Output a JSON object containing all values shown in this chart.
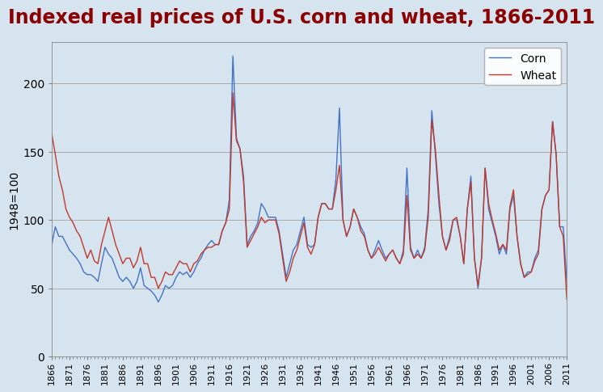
{
  "title": "Indexed real prices of U.S. corn and wheat, 1866-2011",
  "title_color": "#8B0000",
  "title_fontsize": 17,
  "ylabel": "1948=100",
  "ylabel_fontsize": 10,
  "background_color": "#d6e4f0",
  "plot_background": "#d6e4f0",
  "corn_color": "#4472c4",
  "wheat_color": "#c0392b",
  "ylim": [
    0,
    230
  ],
  "yticks": [
    0,
    50,
    100,
    150,
    200
  ],
  "years": [
    1866,
    1867,
    1868,
    1869,
    1870,
    1871,
    1872,
    1873,
    1874,
    1875,
    1876,
    1877,
    1878,
    1879,
    1880,
    1881,
    1882,
    1883,
    1884,
    1885,
    1886,
    1887,
    1888,
    1889,
    1890,
    1891,
    1892,
    1893,
    1894,
    1895,
    1896,
    1897,
    1898,
    1899,
    1900,
    1901,
    1902,
    1903,
    1904,
    1905,
    1906,
    1907,
    1908,
    1909,
    1910,
    1911,
    1912,
    1913,
    1914,
    1915,
    1916,
    1917,
    1918,
    1919,
    1920,
    1921,
    1922,
    1923,
    1924,
    1925,
    1926,
    1927,
    1928,
    1929,
    1930,
    1931,
    1932,
    1933,
    1934,
    1935,
    1936,
    1937,
    1938,
    1939,
    1940,
    1941,
    1942,
    1943,
    1944,
    1945,
    1946,
    1947,
    1948,
    1949,
    1950,
    1951,
    1952,
    1953,
    1954,
    1955,
    1956,
    1957,
    1958,
    1959,
    1960,
    1961,
    1962,
    1963,
    1964,
    1965,
    1966,
    1967,
    1968,
    1969,
    1970,
    1971,
    1972,
    1973,
    1974,
    1975,
    1976,
    1977,
    1978,
    1979,
    1980,
    1981,
    1982,
    1983,
    1984,
    1985,
    1986,
    1987,
    1988,
    1989,
    1990,
    1991,
    1992,
    1993,
    1994,
    1995,
    1996,
    1997,
    1998,
    1999,
    2000,
    2001,
    2002,
    2003,
    2004,
    2005,
    2006,
    2007,
    2008,
    2009,
    2010,
    2011
  ],
  "corn": [
    82,
    95,
    88,
    88,
    83,
    78,
    75,
    72,
    68,
    62,
    60,
    60,
    58,
    55,
    68,
    80,
    75,
    72,
    65,
    58,
    55,
    58,
    55,
    50,
    55,
    65,
    52,
    50,
    48,
    45,
    40,
    45,
    52,
    50,
    52,
    58,
    62,
    60,
    62,
    58,
    62,
    68,
    72,
    78,
    82,
    85,
    82,
    82,
    92,
    98,
    115,
    220,
    160,
    152,
    132,
    82,
    88,
    92,
    98,
    112,
    108,
    102,
    102,
    102,
    92,
    75,
    58,
    68,
    78,
    82,
    92,
    102,
    82,
    80,
    82,
    102,
    112,
    112,
    108,
    108,
    130,
    182,
    100,
    88,
    95,
    108,
    102,
    95,
    90,
    78,
    72,
    78,
    85,
    78,
    72,
    75,
    78,
    72,
    68,
    78,
    138,
    80,
    72,
    78,
    72,
    80,
    108,
    180,
    148,
    112,
    88,
    78,
    88,
    100,
    100,
    88,
    68,
    108,
    132,
    72,
    50,
    72,
    138,
    108,
    98,
    88,
    75,
    82,
    75,
    108,
    118,
    88,
    68,
    58,
    62,
    62,
    72,
    78,
    108,
    118,
    122,
    172,
    148,
    95,
    95,
    55
  ],
  "wheat": [
    163,
    148,
    132,
    122,
    108,
    102,
    98,
    92,
    88,
    80,
    72,
    78,
    70,
    68,
    82,
    92,
    102,
    92,
    82,
    75,
    68,
    72,
    72,
    65,
    70,
    80,
    68,
    68,
    58,
    58,
    50,
    55,
    62,
    60,
    60,
    65,
    70,
    68,
    68,
    62,
    68,
    70,
    75,
    78,
    80,
    80,
    82,
    82,
    92,
    98,
    108,
    193,
    158,
    152,
    128,
    80,
    85,
    90,
    95,
    102,
    98,
    100,
    100,
    100,
    90,
    72,
    55,
    62,
    72,
    78,
    88,
    98,
    80,
    75,
    82,
    102,
    112,
    112,
    108,
    108,
    122,
    140,
    100,
    88,
    95,
    108,
    102,
    92,
    88,
    78,
    72,
    75,
    80,
    75,
    70,
    75,
    78,
    72,
    68,
    75,
    118,
    78,
    72,
    75,
    72,
    78,
    102,
    173,
    152,
    118,
    88,
    78,
    85,
    100,
    102,
    88,
    68,
    108,
    128,
    72,
    52,
    72,
    138,
    112,
    100,
    90,
    78,
    82,
    78,
    110,
    122,
    88,
    68,
    58,
    60,
    62,
    70,
    75,
    108,
    118,
    122,
    172,
    148,
    95,
    88,
    42
  ],
  "xtick_years": [
    1866,
    1871,
    1876,
    1881,
    1886,
    1891,
    1896,
    1901,
    1906,
    1911,
    1916,
    1921,
    1926,
    1931,
    1936,
    1941,
    1946,
    1951,
    1956,
    1961,
    1966,
    1971,
    1976,
    1981,
    1986,
    1991,
    1996,
    2001,
    2006,
    2011
  ],
  "legend_corn_label": "Corn",
  "legend_wheat_label": "Wheat"
}
